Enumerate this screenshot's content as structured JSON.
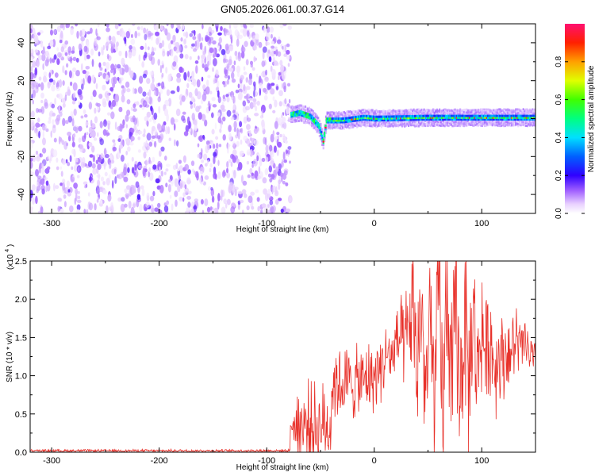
{
  "chart_data": [
    {
      "type": "heatmap",
      "title": "GN05.2026.061.00.37.G14",
      "xlabel": "Height of straight line (km)",
      "ylabel": "Frequency (Hz)",
      "xlim": [
        -320,
        150
      ],
      "ylim": [
        -50,
        50
      ],
      "x_ticks": [
        -300,
        -200,
        -100,
        0,
        100
      ],
      "x_tick_labels": [
        "-300",
        "-200",
        "-100",
        "0",
        "100"
      ],
      "y_ticks": [
        -40,
        -20,
        0,
        20,
        40
      ],
      "y_tick_labels": [
        "-40",
        "-20",
        "0",
        "20",
        "40"
      ],
      "colorbar": {
        "label": "Normalized spectral amplitude",
        "range": [
          0,
          1
        ],
        "ticks": [
          0,
          0.2,
          0.4,
          0.6,
          0.8
        ],
        "tick_labels": [
          "0.0",
          "0.2",
          "0.4",
          "0.6",
          "0.8"
        ],
        "colormap": "rainbow"
      },
      "regions": {
        "noise_x_range": [
          -320,
          -78
        ],
        "noise_freq_range": [
          -50,
          50
        ],
        "noise_amplitude_range": [
          0.02,
          0.14
        ],
        "signal_x_range": [
          -78,
          150
        ],
        "signal_track_freq": [
          {
            "x": -78,
            "freq": 2
          },
          {
            "x": -70,
            "freq": 3
          },
          {
            "x": -60,
            "freq": 1
          },
          {
            "x": -52,
            "freq": -4
          },
          {
            "x": -48,
            "freq": -12
          },
          {
            "x": -45,
            "freq": -1
          },
          {
            "x": -30,
            "freq": -1
          },
          {
            "x": -10,
            "freq": 0.5
          },
          {
            "x": 0,
            "freq": 0
          },
          {
            "x": 50,
            "freq": 0.5
          },
          {
            "x": 100,
            "freq": 0.5
          },
          {
            "x": 150,
            "freq": 0.5
          }
        ],
        "signal_peak_amplitude": 0.95
      }
    },
    {
      "type": "line",
      "title": "",
      "xlabel": "Height of straight line (km)",
      "ylabel": "SNR (10 * v/v)",
      "y_multiplier_label": "(x10",
      "y_multiplier_exponent": "4",
      "xlim": [
        -320,
        150
      ],
      "ylim": [
        0,
        2.5
      ],
      "x_ticks": [
        -300,
        -200,
        -100,
        0,
        100
      ],
      "x_tick_labels": [
        "-300",
        "-200",
        "-100",
        "0",
        "100"
      ],
      "y_ticks": [
        0,
        0.5,
        1.0,
        1.5,
        2.0,
        2.5
      ],
      "y_tick_labels": [
        "0.0",
        "0.5",
        "1.0",
        "1.5",
        "2.0",
        "2.5"
      ],
      "series": [
        {
          "color": "#e8312a",
          "x": [
            -320,
            -300,
            -250,
            -200,
            -150,
            -100,
            -80,
            -75,
            -72,
            -68,
            -64,
            -60,
            -56,
            -52,
            -48,
            -44,
            -40,
            -36,
            -32,
            -28,
            -24,
            -20,
            -16,
            -12,
            -8,
            -4,
            0,
            4,
            8,
            12,
            16,
            20,
            24,
            28,
            32,
            36,
            40,
            44,
            48,
            52,
            56,
            60,
            64,
            68,
            72,
            76,
            80,
            84,
            88,
            92,
            96,
            100,
            104,
            108,
            112,
            116,
            120,
            124,
            128,
            132,
            136,
            140,
            144,
            148,
            150
          ],
          "y": [
            0.02,
            0.02,
            0.02,
            0.02,
            0.02,
            0.02,
            0.02,
            0.05,
            0.6,
            0.3,
            0.8,
            0.2,
            0.7,
            0.5,
            0.1,
            0.05,
            0.4,
            0.7,
            0.6,
            0.8,
            0.7,
            0.9,
            0.85,
            0.9,
            0.95,
            1.0,
            0.95,
            1.1,
            1.15,
            1.3,
            1.2,
            1.4,
            1.5,
            1.3,
            1.6,
            1.9,
            1.0,
            2.1,
            0.5,
            1.8,
            0.1,
            2.3,
            0.05,
            2.5,
            0.4,
            2.1,
            0.6,
            1.9,
            0.9,
            1.8,
            1.0,
            1.7,
            1.2,
            1.5,
            1.1,
            1.3,
            1.2,
            1.35,
            1.25,
            1.5,
            1.3,
            1.45,
            1.3,
            1.2,
            1.25
          ],
          "noise_amplitude_by_x": [
            {
              "x": -320,
              "amp": 0.01
            },
            {
              "x": -78,
              "amp": 0.01
            },
            {
              "x": -70,
              "amp": 0.35
            },
            {
              "x": -40,
              "amp": 0.3
            },
            {
              "x": 20,
              "amp": 0.25
            },
            {
              "x": 40,
              "amp": 0.55
            },
            {
              "x": 70,
              "amp": 0.75
            },
            {
              "x": 110,
              "amp": 0.4
            },
            {
              "x": 150,
              "amp": 0.15
            }
          ]
        }
      ]
    }
  ]
}
